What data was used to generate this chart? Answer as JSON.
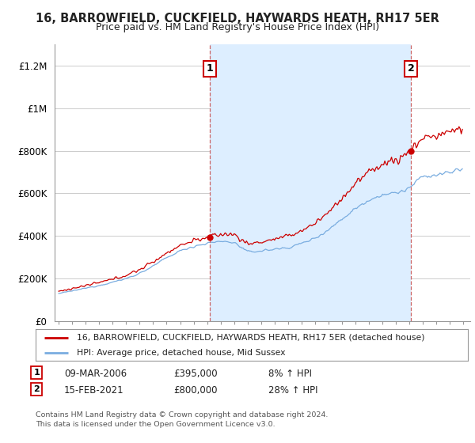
{
  "title": "16, BARROWFIELD, CUCKFIELD, HAYWARDS HEATH, RH17 5ER",
  "subtitle": "Price paid vs. HM Land Registry's House Price Index (HPI)",
  "ylim": [
    0,
    1300000
  ],
  "yticks": [
    0,
    200000,
    400000,
    600000,
    800000,
    1000000,
    1200000
  ],
  "ytick_labels": [
    "£0",
    "£200K",
    "£400K",
    "£600K",
    "£800K",
    "£1M",
    "£1.2M"
  ],
  "xlim_start": 1994.7,
  "xlim_end": 2025.5,
  "transaction1_date": 2006.18,
  "transaction1_price": 395000,
  "transaction2_date": 2021.12,
  "transaction2_price": 800000,
  "line_color_property": "#cc0000",
  "line_color_hpi": "#7aade0",
  "vline_color": "#cc6666",
  "shade_color": "#ddeeff",
  "background_color": "#ffffff",
  "grid_color": "#cccccc",
  "legend_label_property": "16, BARROWFIELD, CUCKFIELD, HAYWARDS HEATH, RH17 5ER (detached house)",
  "legend_label_hpi": "HPI: Average price, detached house, Mid Sussex",
  "note1_date": "09-MAR-2006",
  "note1_price": "£395,000",
  "note1_hpi": "8% ↑ HPI",
  "note2_date": "15-FEB-2021",
  "note2_price": "£800,000",
  "note2_hpi": "28% ↑ HPI",
  "footer": "Contains HM Land Registry data © Crown copyright and database right 2024.\nThis data is licensed under the Open Government Licence v3.0."
}
